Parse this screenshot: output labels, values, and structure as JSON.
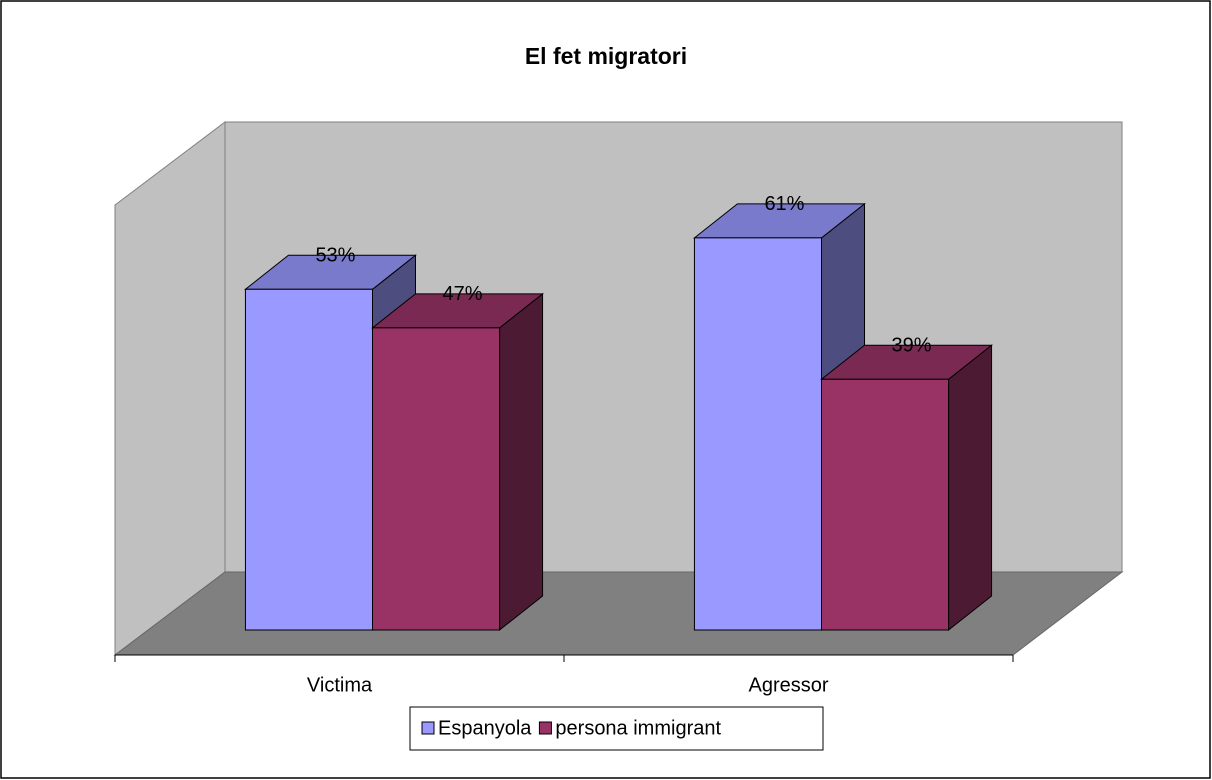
{
  "chart_data": {
    "type": "bar3d",
    "title": "El fet migratori",
    "categories": [
      "Victima",
      "Agressor"
    ],
    "series": [
      {
        "name": "Espanyola",
        "color": "#9999ff",
        "values": [
          53,
          61
        ],
        "value_labels": [
          "53%",
          "61%"
        ]
      },
      {
        "name": "persona immigrant",
        "color": "#993366",
        "values": [
          47,
          39
        ],
        "value_labels": [
          "47%",
          "39%"
        ]
      }
    ],
    "ylim": [
      0,
      70
    ],
    "legend": "bottom"
  }
}
